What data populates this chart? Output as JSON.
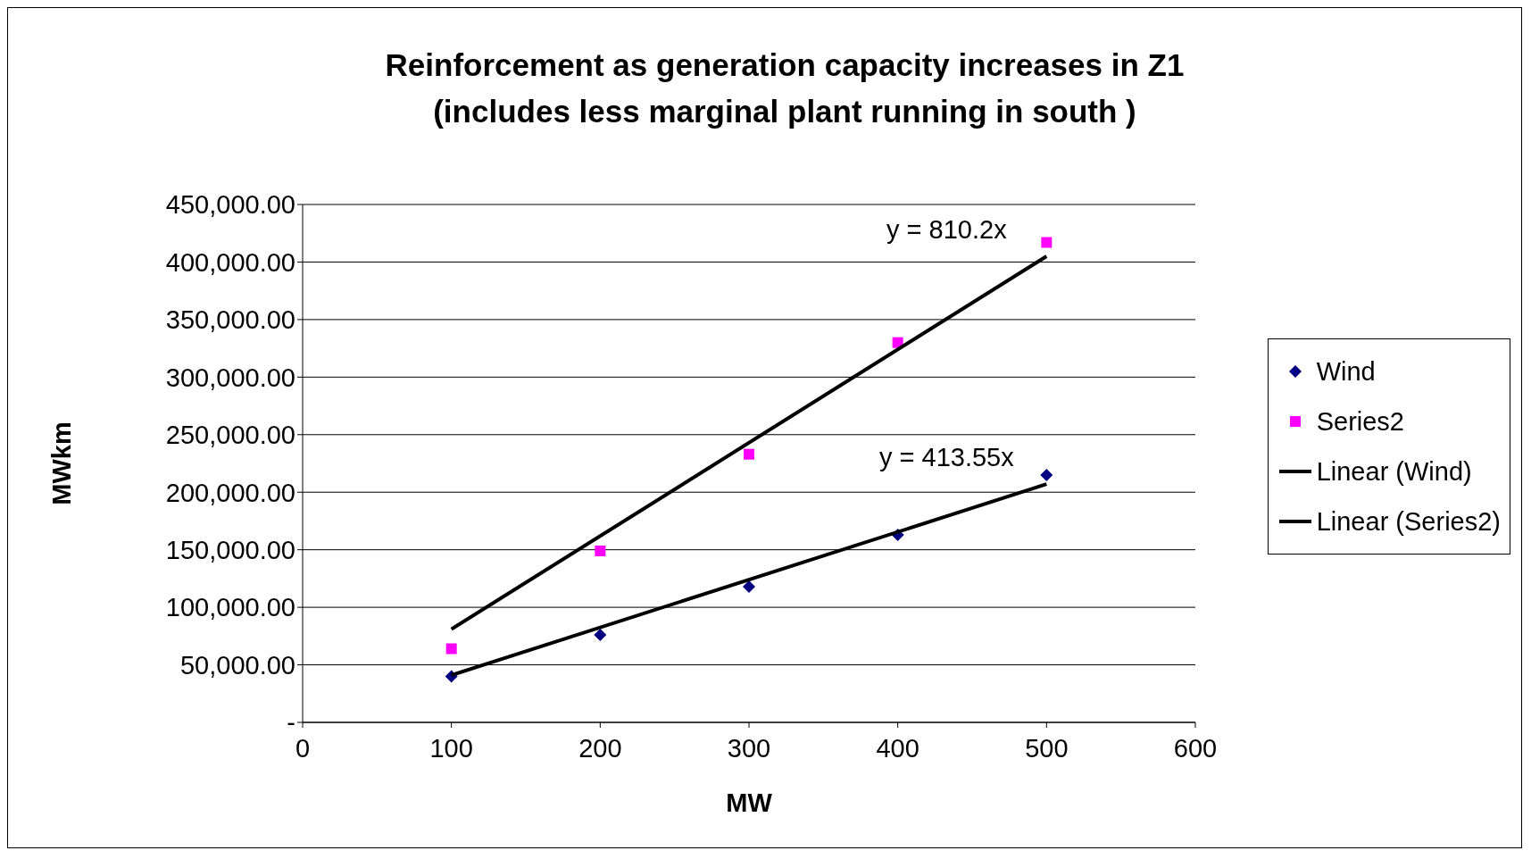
{
  "chart_data": {
    "type": "scatter",
    "title": "Reinforcement as generation capacity increases in Z1\n(includes less marginal plant running in south )",
    "xlabel": "MW",
    "ylabel": "MWkm",
    "xlim": [
      0,
      600
    ],
    "xticks": [
      0,
      100,
      200,
      300,
      400,
      500,
      600
    ],
    "ylim": [
      0,
      450000
    ],
    "yticks": [
      {
        "value": 0,
        "label": "-"
      },
      {
        "value": 50000,
        "label": "50,000.00"
      },
      {
        "value": 100000,
        "label": "100,000.00"
      },
      {
        "value": 150000,
        "label": "150,000.00"
      },
      {
        "value": 200000,
        "label": "200,000.00"
      },
      {
        "value": 250000,
        "label": "250,000.00"
      },
      {
        "value": 300000,
        "label": "300,000.00"
      },
      {
        "value": 350000,
        "label": "350,000.00"
      },
      {
        "value": 400000,
        "label": "400,000.00"
      },
      {
        "value": 450000,
        "label": "450,000.00"
      }
    ],
    "grid": "y",
    "legend": "right",
    "series": [
      {
        "name": "Wind",
        "marker": "diamond",
        "color": "#000080",
        "x": [
          100,
          200,
          300,
          400,
          500
        ],
        "values": [
          40000,
          76000,
          118000,
          163000,
          215000
        ]
      },
      {
        "name": "Series2",
        "marker": "square",
        "color": "#ff00ff",
        "x": [
          100,
          200,
          300,
          400,
          500
        ],
        "values": [
          64000,
          149000,
          233000,
          330000,
          417000
        ]
      },
      {
        "name": "Linear (Wind)",
        "type": "line",
        "marker": "none",
        "color": "#000000",
        "x": [
          100,
          500
        ],
        "values": [
          41000,
          207000
        ]
      },
      {
        "name": "Linear (Series2)",
        "type": "line",
        "marker": "none",
        "color": "#000000",
        "x": [
          100,
          500
        ],
        "values": [
          81000,
          405000
        ]
      }
    ],
    "annotations": [
      "y = 810.2x",
      "y = 413.55x"
    ]
  }
}
